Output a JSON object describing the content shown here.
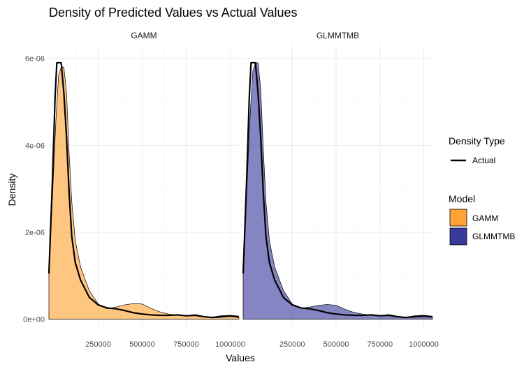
{
  "chart_data": {
    "type": "area",
    "title": "Density of Predicted Values vs Actual Values",
    "xlabel": "Values",
    "ylabel": "Density",
    "xlim": [
      -30000,
      1050000
    ],
    "ylim": [
      -1.5e-07,
      6.3e-06
    ],
    "x_ticks": [
      250000,
      500000,
      750000,
      1000000
    ],
    "x_tick_labels": [
      "250000",
      "500000",
      "750000",
      "1000000"
    ],
    "y_ticks": [
      0,
      2e-06,
      4e-06,
      6e-06
    ],
    "y_tick_labels": [
      "0e+00",
      "2e-06",
      "4e-06",
      "6e-06"
    ],
    "grid": true,
    "legend_position": "right",
    "legend": {
      "density_type_title": "Density Type",
      "density_type_entries": [
        {
          "label": "Actual",
          "color": "#000000"
        }
      ],
      "model_title": "Model",
      "model_entries": [
        {
          "label": "GAMM",
          "color": "#FFA333"
        },
        {
          "label": "GLMMTMB",
          "color": "#3A3A9E"
        }
      ]
    },
    "facets": [
      {
        "label": "GAMM",
        "fill_color": "#FFA333",
        "predicted": {
          "x": [
            -30000,
            -10000,
            10000,
            25000,
            40000,
            55000,
            70000,
            85000,
            100000,
            120000,
            150000,
            200000,
            250000,
            300000,
            350000,
            400000,
            450000,
            500000,
            550000,
            600000,
            650000,
            700000,
            750000,
            800000,
            850000,
            900000,
            950000,
            1000000,
            1050000
          ],
          "y": [
            1.05e-06,
            2.8e-06,
            4.6e-06,
            5.6e-06,
            5.8e-06,
            5.8e-06,
            5.2e-06,
            3.8e-06,
            2.7e-06,
            1.8e-06,
            1.2e-06,
            6.5e-07,
            3.5e-07,
            2.4e-07,
            2.8e-07,
            3.3e-07,
            3.6e-07,
            3.5e-07,
            2.5e-07,
            1.7e-07,
            1.2e-07,
            9e-08,
            8e-08,
            1.1e-07,
            7e-08,
            3e-08,
            4e-08,
            6e-08,
            4e-08
          ]
        },
        "actual": {
          "x": [
            -30000,
            -10000,
            5000,
            15000,
            25000,
            40000,
            55000,
            70000,
            85000,
            100000,
            120000,
            150000,
            200000,
            250000,
            300000,
            350000,
            400000,
            450000,
            500000,
            550000,
            600000,
            650000,
            700000,
            750000,
            800000,
            850000,
            900000,
            950000,
            1000000,
            1050000
          ],
          "y": [
            1.05e-06,
            3.2e-06,
            5.1e-06,
            5.9e-06,
            5.9e-06,
            5.9e-06,
            5.2e-06,
            4.2e-06,
            2.9e-06,
            1.9e-06,
            1.3e-06,
            9e-07,
            5e-07,
            3.3e-07,
            2.6e-07,
            2.4e-07,
            2e-07,
            1.5e-07,
            1.2e-07,
            1e-07,
            9e-08,
            9e-08,
            1e-07,
            8e-08,
            9e-08,
            6e-08,
            4e-08,
            7e-08,
            8e-08,
            6e-08
          ]
        }
      },
      {
        "label": "GLMMTMB",
        "fill_color": "#3A3A9E",
        "predicted": {
          "x": [
            -30000,
            -10000,
            10000,
            25000,
            40000,
            55000,
            70000,
            85000,
            100000,
            120000,
            150000,
            200000,
            250000,
            300000,
            350000,
            400000,
            450000,
            500000,
            550000,
            600000,
            650000,
            700000,
            750000,
            800000,
            850000,
            900000,
            950000,
            1000000,
            1050000
          ],
          "y": [
            1.05e-06,
            2.9e-06,
            4.7e-06,
            5.7e-06,
            5.9e-06,
            5.9e-06,
            5.3e-06,
            3.9e-06,
            2.7e-06,
            1.8e-06,
            1.2e-06,
            6.6e-07,
            3.5e-07,
            2.5e-07,
            2.8e-07,
            3.2e-07,
            3.4e-07,
            3.2e-07,
            2.3e-07,
            1.6e-07,
            1.2e-07,
            9e-08,
            8e-08,
            1.1e-07,
            7e-08,
            4e-08,
            4e-08,
            6e-08,
            4e-08
          ]
        },
        "actual": {
          "x": [
            -30000,
            -10000,
            5000,
            15000,
            25000,
            40000,
            55000,
            70000,
            85000,
            100000,
            120000,
            150000,
            200000,
            250000,
            300000,
            350000,
            400000,
            450000,
            500000,
            550000,
            600000,
            650000,
            700000,
            750000,
            800000,
            850000,
            900000,
            950000,
            1000000,
            1050000
          ],
          "y": [
            1.05e-06,
            3.2e-06,
            5.1e-06,
            5.9e-06,
            5.9e-06,
            5.9e-06,
            5.2e-06,
            4.2e-06,
            2.9e-06,
            1.9e-06,
            1.3e-06,
            9e-07,
            5e-07,
            3.3e-07,
            2.6e-07,
            2.4e-07,
            2e-07,
            1.5e-07,
            1.2e-07,
            1e-07,
            9e-08,
            9e-08,
            1e-07,
            8e-08,
            9e-08,
            6e-08,
            4e-08,
            7e-08,
            8e-08,
            6e-08
          ]
        }
      }
    ]
  }
}
